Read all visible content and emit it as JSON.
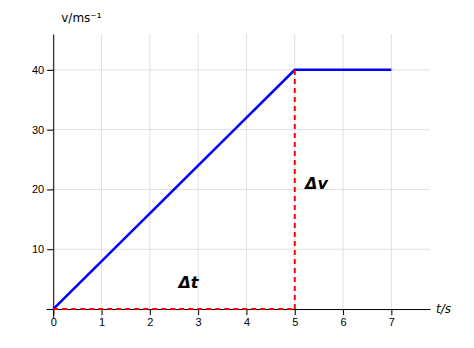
{
  "chart_data": {
    "type": "line",
    "xlabel": "t/s",
    "ylabel": "v/ms⁻¹",
    "xlim": [
      -0.15,
      7.8
    ],
    "ylim": [
      -1.5,
      46
    ],
    "xticks": [
      0,
      1,
      2,
      3,
      4,
      5,
      6,
      7
    ],
    "yticks": [
      10,
      20,
      30,
      40
    ],
    "grid": true,
    "series": [
      {
        "color": "#0000ff",
        "line_style": "solid",
        "x": [
          0,
          5,
          7
        ],
        "values": [
          0,
          40,
          40
        ]
      },
      {
        "color": "#ff0000",
        "line_style": "dashed",
        "x": [
          0,
          5
        ],
        "values": [
          0,
          0
        ]
      },
      {
        "color": "#ff0000",
        "line_style": "dashed",
        "x": [
          5,
          5
        ],
        "values": [
          0,
          40
        ]
      }
    ],
    "annotations": [
      {
        "text": "Δt",
        "x": 2.8,
        "y": 4.5
      },
      {
        "text": "Δv",
        "x": 5.45,
        "y": 21
      }
    ]
  }
}
